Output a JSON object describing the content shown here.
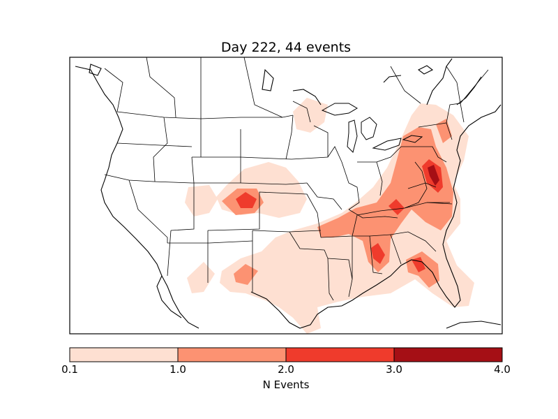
{
  "title": "Day 222, 44 events",
  "colorbar": {
    "label": "N Events",
    "ticks": [
      "0.1",
      "1.0",
      "2.0",
      "3.0",
      "4.0"
    ],
    "colors": [
      "#fee0d2",
      "#fc9272",
      "#ef3b2c",
      "#a50f15"
    ]
  },
  "map_colors": {
    "level1": "#fee0d2",
    "level2": "#fc9272",
    "level3": "#ef3b2c",
    "level4": "#a50f15",
    "border": "#000000",
    "background": "#ffffff"
  }
}
